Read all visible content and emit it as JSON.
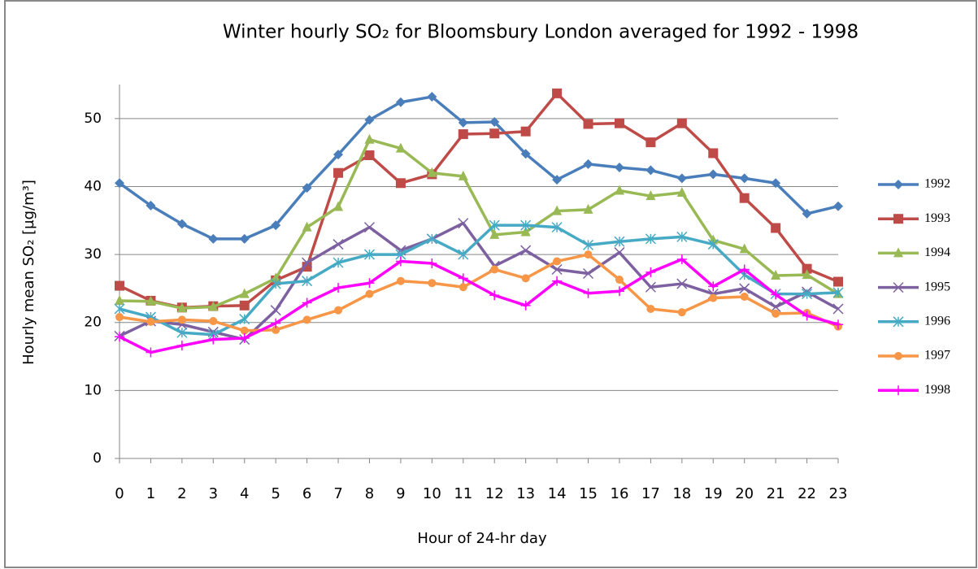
{
  "chart_data": {
    "type": "line",
    "title": "Winter hourly SO₂ for Bloomsbury London averaged for 1992 - 1998",
    "x_label": "Hour of 24-hr day",
    "y_label": "Hourly mean SO₂ [µg/m³]",
    "x": [
      0,
      1,
      2,
      3,
      4,
      5,
      6,
      7,
      8,
      9,
      10,
      11,
      12,
      13,
      14,
      15,
      16,
      17,
      18,
      19,
      20,
      21,
      22,
      23
    ],
    "xlim": [
      0,
      23
    ],
    "ylim": [
      0,
      55
    ],
    "yticks": [
      0,
      10,
      20,
      30,
      40,
      50
    ],
    "grid": true,
    "legend": "right",
    "series": [
      {
        "name": "1992",
        "color": "#4a7ebb",
        "marker": "diamond",
        "values": [
          40.5,
          37.2,
          34.5,
          32.3,
          32.3,
          34.3,
          39.8,
          44.7,
          49.8,
          52.4,
          53.2,
          49.4,
          49.5,
          44.8,
          41,
          43.3,
          42.8,
          42.4,
          41.2,
          41.8,
          41.2,
          40.5,
          36,
          37.1
        ]
      },
      {
        "name": "1993",
        "color": "#be4b48",
        "marker": "square",
        "values": [
          25.4,
          23.2,
          22.2,
          22.4,
          22.5,
          26.2,
          28.2,
          42,
          44.6,
          40.5,
          41.8,
          47.7,
          47.8,
          48.1,
          53.7,
          49.2,
          49.3,
          46.5,
          49.3,
          44.9,
          38.3,
          33.9,
          27.9,
          26
        ]
      },
      {
        "name": "1994",
        "color": "#98b954",
        "marker": "triangle",
        "values": [
          23.2,
          23.1,
          22.1,
          22.3,
          24.2,
          26.5,
          34,
          37,
          46.9,
          45.6,
          42,
          41.5,
          32.9,
          33.3,
          36.4,
          36.6,
          39.4,
          38.6,
          39.1,
          32.1,
          30.8,
          26.9,
          27,
          24.2
        ]
      },
      {
        "name": "1995",
        "color": "#7d60a0",
        "marker": "x",
        "values": [
          18,
          20.2,
          19.7,
          18.6,
          17.5,
          21.8,
          28.8,
          31.5,
          34,
          30.6,
          32.3,
          34.6,
          28.3,
          30.6,
          27.8,
          27.2,
          30.3,
          25.2,
          25.7,
          24.2,
          25,
          22.3,
          24.5,
          22
        ]
      },
      {
        "name": "1996",
        "color": "#46aac5",
        "marker": "asterisk",
        "values": [
          22,
          20.8,
          18.5,
          18.2,
          20.5,
          25.7,
          26.1,
          28.8,
          30,
          30,
          32.3,
          30,
          34.3,
          34.3,
          34,
          31.4,
          31.9,
          32.3,
          32.6,
          31.5,
          27,
          24.2,
          24.2,
          24.4
        ]
      },
      {
        "name": "1997",
        "color": "#f79646",
        "marker": "circle",
        "values": [
          20.8,
          20.1,
          20.4,
          20.2,
          18.8,
          18.9,
          20.4,
          21.8,
          24.2,
          26.1,
          25.8,
          25.2,
          27.8,
          26.5,
          29,
          30,
          26.3,
          22,
          21.5,
          23.6,
          23.8,
          21.3,
          21.4,
          19.4
        ]
      },
      {
        "name": "1998",
        "color": "#ff00ff",
        "marker": "plus",
        "values": [
          17.9,
          15.6,
          16.6,
          17.5,
          17.7,
          19.9,
          22.9,
          25.1,
          25.8,
          29,
          28.7,
          26.5,
          24,
          22.5,
          26.1,
          24.3,
          24.6,
          27.4,
          29.3,
          25.3,
          27.8,
          24.1,
          21,
          19.7
        ]
      }
    ]
  }
}
